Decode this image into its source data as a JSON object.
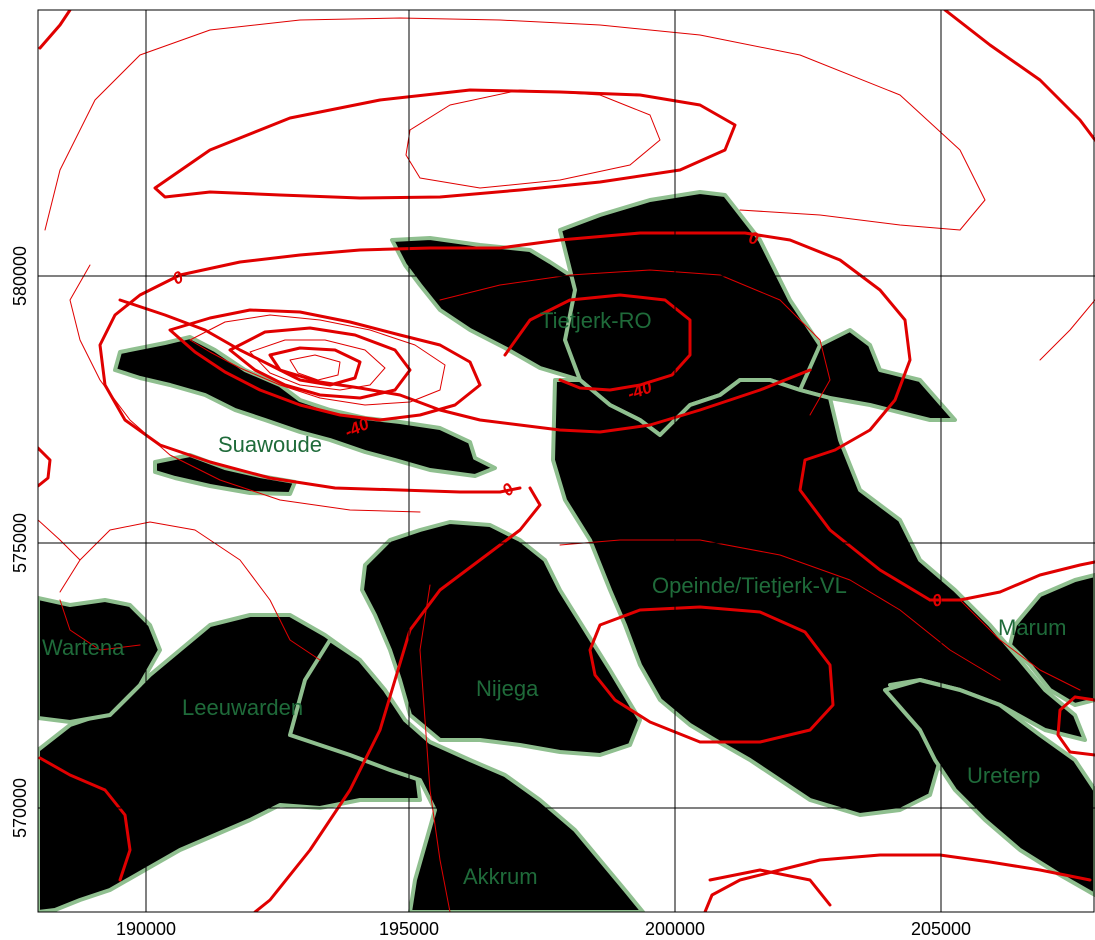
{
  "map": {
    "x_axis_ticks": [
      "190000",
      "195000",
      "200000",
      "205000"
    ],
    "y_axis_ticks": [
      "580000",
      "575000",
      "570000"
    ],
    "gas_fields": [
      {
        "id": "tietjerk-ro",
        "label": "Tietjerk-RO"
      },
      {
        "id": "suawoude",
        "label": "Suawoude"
      },
      {
        "id": "opeinde",
        "label": "Opeinde/Tietjerk-VL"
      },
      {
        "id": "wartena",
        "label": "Wartena"
      },
      {
        "id": "leeuwarden",
        "label": "Leeuwarden"
      },
      {
        "id": "nijega",
        "label": "Nijega"
      },
      {
        "id": "akkrum",
        "label": "Akkrum"
      },
      {
        "id": "marum",
        "label": "Marum"
      },
      {
        "id": "ureterp",
        "label": "Ureterp"
      }
    ],
    "contour_labels": [
      "0",
      "0",
      "0",
      "0",
      "-40",
      "-40"
    ],
    "colors": {
      "contour": "#e00000",
      "field_fill": "#000000",
      "field_outline": "#8fbf8f",
      "field_label": "#1f6b3a",
      "grid": "#000000"
    }
  }
}
